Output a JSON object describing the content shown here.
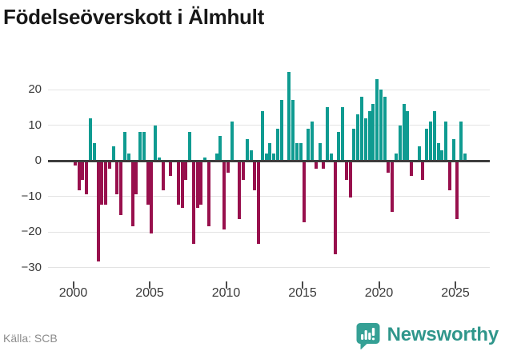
{
  "title": "Födelseöverskott i Älmhult",
  "source": "Källa: SCB",
  "branding": {
    "name": "Newsworthy",
    "icon": "newsworthy-speech-bubble-chart-icon",
    "color": "#2f968b"
  },
  "y_axis": {
    "tick_labels": [
      "20",
      "10",
      "0",
      "−10",
      "−20",
      "−30"
    ],
    "tick_values": [
      20,
      10,
      0,
      -10,
      -20,
      -30
    ]
  },
  "x_axis": {
    "tick_years": [
      2000,
      2005,
      2010,
      2015,
      2020,
      2025
    ]
  },
  "chart_data": {
    "type": "bar",
    "title": "Födelseöverskott i Älmhult",
    "xlabel": "",
    "ylabel": "",
    "frequency": "quarterly",
    "start_period": "2000-Q1",
    "end_period": "2025-Q3",
    "ylim": [
      -30,
      26
    ],
    "grid": "horizontal",
    "legend": "none",
    "colors": {
      "positive": "#0f9b91",
      "negative": "#98104d",
      "zero_line": "#3d3d3d"
    },
    "values": [
      -1,
      -8,
      -5,
      -9,
      12,
      5,
      -28,
      -12,
      -12,
      -2,
      4,
      -9,
      -15,
      8,
      2,
      -18,
      -9,
      8,
      8,
      -12,
      -20,
      10,
      1,
      -8,
      0,
      -4,
      0,
      -12,
      -13,
      -5,
      8,
      -23,
      -13,
      -12,
      1,
      -18,
      0,
      2,
      7,
      -19,
      -3,
      11,
      0,
      -16,
      -5,
      6,
      3,
      -8,
      -23,
      14,
      2,
      5,
      2,
      9,
      17,
      0,
      25,
      17,
      5,
      5,
      -17,
      9,
      11,
      -2,
      5,
      -2,
      15,
      2,
      -26,
      8,
      15,
      -5,
      -10,
      9,
      13,
      18,
      12,
      14,
      16,
      23,
      20,
      18,
      -3,
      -14,
      2,
      10,
      16,
      14,
      -4,
      0,
      4,
      -5,
      9,
      11,
      14,
      5,
      3,
      11,
      -8,
      6,
      -16,
      11,
      2
    ]
  }
}
